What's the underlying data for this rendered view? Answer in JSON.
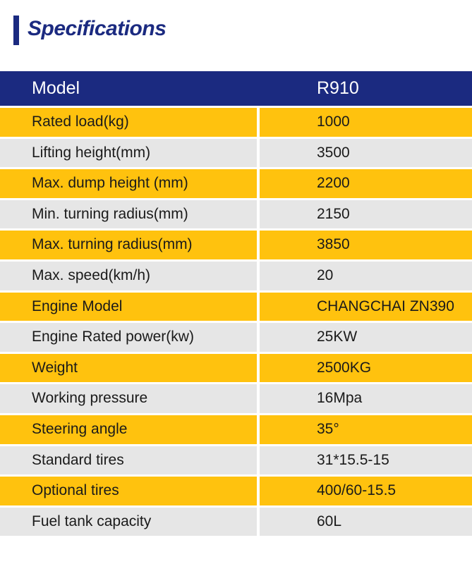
{
  "title": "Specifications",
  "colors": {
    "navy": "#1b2a80",
    "yellow": "#ffc20e",
    "gray": "#e6e6e6"
  },
  "table": {
    "header": {
      "label": "Model",
      "value": "R910"
    },
    "rows": [
      {
        "label": "Rated load(kg)",
        "value": "1000"
      },
      {
        "label": "Lifting height(mm)",
        "value": "3500"
      },
      {
        "label": "Max. dump height (mm)",
        "value": "2200"
      },
      {
        "label": "Min. turning radius(mm)",
        "value": "2150"
      },
      {
        "label": "Max. turning radius(mm)",
        "value": "3850"
      },
      {
        "label": "Max. speed(km/h)",
        "value": "20"
      },
      {
        "label": "Engine Model",
        "value": "CHANGCHAI ZN390"
      },
      {
        "label": "Engine Rated power(kw)",
        "value": "25KW"
      },
      {
        "label": "Weight",
        "value": "2500KG"
      },
      {
        "label": "Working pressure",
        "value": "16Mpa"
      },
      {
        "label": "Steering angle",
        "value": "35°"
      },
      {
        "label": "Standard tires",
        "value": "31*15.5-15"
      },
      {
        "label": "Optional tires",
        "value": "400/60-15.5"
      },
      {
        "label": "Fuel tank capacity",
        "value": "60L"
      }
    ]
  }
}
